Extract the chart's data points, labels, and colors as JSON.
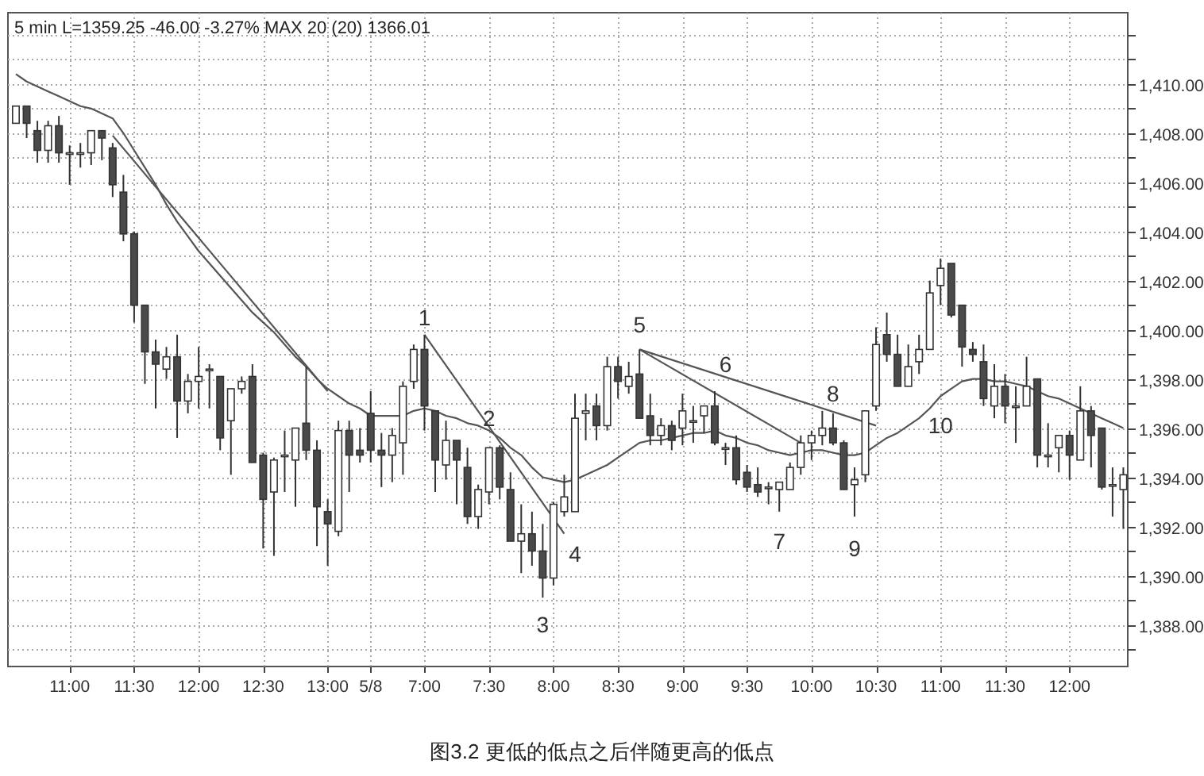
{
  "chart_data": {
    "type": "candlestick",
    "title": "图3.2 更低的低点之后伴随更高的低点",
    "subtitle": "5 min  L=1359.25  -46.00  -3.27%  MAX 20 (20) 1366.01",
    "categories": [
      null,
      null,
      null,
      null,
      null,
      "11:00",
      null,
      null,
      null,
      null,
      null,
      "11:30",
      null,
      null,
      null,
      null,
      null,
      "12:00",
      null,
      null,
      null,
      null,
      null,
      "12:30",
      null,
      null,
      null,
      null,
      null,
      "13:00",
      null,
      null,
      null,
      "5/8",
      null,
      null,
      null,
      null,
      "7:00",
      null,
      null,
      null,
      null,
      null,
      "7:30",
      null,
      null,
      null,
      null,
      null,
      "8:00",
      null,
      null,
      null,
      null,
      null,
      "8:30",
      null,
      null,
      null,
      null,
      null,
      "9:00",
      null,
      null,
      null,
      null,
      null,
      "9:30",
      null,
      null,
      null,
      null,
      null,
      "10:00",
      null,
      null,
      null,
      null,
      null,
      "10:30",
      null,
      null,
      null,
      null,
      null,
      "11:00",
      null,
      null,
      null,
      null,
      null,
      "11:30",
      null,
      null,
      null,
      null,
      null,
      "12:00",
      null,
      null,
      null,
      null,
      null
    ],
    "ohlc": [
      [
        1408.4,
        1409.1,
        1408.4,
        1409.1
      ],
      [
        1409.1,
        1409.1,
        1407.8,
        1408.4
      ],
      [
        1408.1,
        1408.5,
        1406.8,
        1407.3
      ],
      [
        1407.3,
        1408.5,
        1406.8,
        1408.3
      ],
      [
        1408.3,
        1408.7,
        1406.8,
        1407.2
      ],
      [
        1407.2,
        1407.5,
        1405.9,
        1407.2
      ],
      [
        1407.2,
        1407.6,
        1406.6,
        1407.2
      ],
      [
        1407.2,
        1408.1,
        1406.7,
        1408.1
      ],
      [
        1408.1,
        1408.1,
        1406.9,
        1407.8
      ],
      [
        1407.4,
        1407.6,
        1405.4,
        1405.9
      ],
      [
        1405.6,
        1406.3,
        1403.6,
        1403.9
      ],
      [
        1403.9,
        1404.0,
        1400.3,
        1401.0
      ],
      [
        1401.0,
        1401.0,
        1397.8,
        1399.1
      ],
      [
        1399.1,
        1399.6,
        1396.8,
        1398.6
      ],
      [
        1398.4,
        1399.3,
        1398.0,
        1398.9
      ],
      [
        1398.9,
        1399.8,
        1395.6,
        1397.1
      ],
      [
        1397.1,
        1398.2,
        1396.6,
        1397.9
      ],
      [
        1397.9,
        1399.3,
        1396.8,
        1398.1
      ],
      [
        1398.4,
        1398.6,
        1396.8,
        1398.4
      ],
      [
        1398.1,
        1398.1,
        1395.1,
        1395.6
      ],
      [
        1396.3,
        1397.6,
        1394.1,
        1397.6
      ],
      [
        1397.6,
        1398.1,
        1397.4,
        1397.9
      ],
      [
        1398.1,
        1398.6,
        1394.6,
        1394.6
      ],
      [
        1394.9,
        1395.0,
        1391.1,
        1393.1
      ],
      [
        1393.4,
        1394.8,
        1390.8,
        1394.7
      ],
      [
        1394.9,
        1395.9,
        1393.4,
        1394.9
      ],
      [
        1394.7,
        1396.0,
        1392.8,
        1396.0
      ],
      [
        1396.2,
        1398.5,
        1394.7,
        1395.1
      ],
      [
        1395.1,
        1395.5,
        1391.2,
        1392.8
      ],
      [
        1392.6,
        1393.1,
        1390.4,
        1392.1
      ],
      [
        1391.8,
        1396.3,
        1391.6,
        1395.9
      ],
      [
        1395.9,
        1396.3,
        1393.4,
        1394.9
      ],
      [
        1395.1,
        1396.0,
        1394.6,
        1394.9
      ],
      [
        1396.6,
        1397.5,
        1394.6,
        1395.1
      ],
      [
        1395.1,
        1395.8,
        1393.6,
        1394.9
      ],
      [
        1394.9,
        1396.0,
        1393.8,
        1395.7
      ],
      [
        1395.4,
        1397.9,
        1394.1,
        1397.7
      ],
      [
        1397.9,
        1399.4,
        1397.6,
        1399.2
      ],
      [
        1399.2,
        1399.8,
        1395.9,
        1396.9
      ],
      [
        1396.7,
        1396.7,
        1393.4,
        1394.7
      ],
      [
        1394.5,
        1396.3,
        1393.9,
        1395.5
      ],
      [
        1395.5,
        1395.5,
        1392.9,
        1394.7
      ],
      [
        1394.4,
        1395.2,
        1392.1,
        1392.4
      ],
      [
        1392.4,
        1393.7,
        1391.9,
        1393.5
      ],
      [
        1393.4,
        1395.2,
        1392.9,
        1395.2
      ],
      [
        1395.2,
        1395.3,
        1393.1,
        1393.6
      ],
      [
        1393.5,
        1394.2,
        1391.4,
        1391.4
      ],
      [
        1391.4,
        1392.9,
        1390.1,
        1391.7
      ],
      [
        1391.7,
        1392.6,
        1390.4,
        1391.0
      ],
      [
        1391.0,
        1392.1,
        1389.1,
        1389.9
      ],
      [
        1389.9,
        1393.0,
        1389.6,
        1392.9
      ],
      [
        1392.6,
        1394.1,
        1392.4,
        1393.2
      ],
      [
        1392.6,
        1397.4,
        1392.6,
        1396.4
      ],
      [
        1396.6,
        1397.4,
        1395.5,
        1396.7
      ],
      [
        1396.9,
        1397.4,
        1395.5,
        1396.1
      ],
      [
        1396.1,
        1398.9,
        1395.9,
        1398.5
      ],
      [
        1398.5,
        1398.9,
        1397.2,
        1397.9
      ],
      [
        1397.7,
        1398.7,
        1397.4,
        1398.1
      ],
      [
        1398.2,
        1399.2,
        1396.4,
        1396.4
      ],
      [
        1396.5,
        1397.4,
        1395.3,
        1395.7
      ],
      [
        1395.7,
        1396.4,
        1395.3,
        1396.1
      ],
      [
        1396.1,
        1396.3,
        1395.1,
        1395.5
      ],
      [
        1396.0,
        1397.4,
        1395.3,
        1396.7
      ],
      [
        1396.3,
        1396.9,
        1395.4,
        1396.3
      ],
      [
        1396.5,
        1396.9,
        1395.8,
        1396.9
      ],
      [
        1396.9,
        1397.5,
        1395.3,
        1395.4
      ],
      [
        1395.2,
        1395.4,
        1394.5,
        1395.2
      ],
      [
        1395.2,
        1395.7,
        1393.7,
        1393.9
      ],
      [
        1394.2,
        1394.5,
        1393.4,
        1393.6
      ],
      [
        1393.7,
        1394.4,
        1393.2,
        1393.4
      ],
      [
        1393.6,
        1393.8,
        1392.9,
        1393.6
      ],
      [
        1393.5,
        1393.8,
        1392.6,
        1393.8
      ],
      [
        1393.5,
        1394.6,
        1393.5,
        1394.4
      ],
      [
        1394.4,
        1395.7,
        1394.1,
        1395.4
      ],
      [
        1395.4,
        1395.9,
        1394.7,
        1395.7
      ],
      [
        1395.7,
        1396.7,
        1395.3,
        1396.0
      ],
      [
        1396.0,
        1396.6,
        1395.3,
        1395.4
      ],
      [
        1395.4,
        1395.5,
        1393.5,
        1393.5
      ],
      [
        1393.7,
        1394.4,
        1392.4,
        1393.9
      ],
      [
        1394.1,
        1396.7,
        1393.8,
        1396.7
      ],
      [
        1396.9,
        1400.1,
        1396.7,
        1399.4
      ],
      [
        1399.8,
        1400.7,
        1398.7,
        1399.0
      ],
      [
        1399.0,
        1399.8,
        1397.7,
        1397.7
      ],
      [
        1397.7,
        1399.4,
        1397.7,
        1398.5
      ],
      [
        1398.7,
        1399.8,
        1398.2,
        1399.2
      ],
      [
        1399.2,
        1402.0,
        1399.2,
        1401.5
      ],
      [
        1401.8,
        1402.9,
        1401.0,
        1402.5
      ],
      [
        1402.7,
        1402.7,
        1400.5,
        1400.6
      ],
      [
        1401.0,
        1401.0,
        1398.5,
        1399.3
      ],
      [
        1399.2,
        1399.5,
        1398.7,
        1399.0
      ],
      [
        1398.7,
        1399.4,
        1396.9,
        1397.2
      ],
      [
        1396.9,
        1398.6,
        1396.4,
        1397.7
      ],
      [
        1397.7,
        1398.2,
        1396.2,
        1396.9
      ],
      [
        1396.9,
        1397.7,
        1395.4,
        1396.9
      ],
      [
        1396.9,
        1398.9,
        1396.9,
        1397.7
      ],
      [
        1398.0,
        1398.0,
        1394.4,
        1394.9
      ],
      [
        1394.9,
        1396.2,
        1394.4,
        1394.9
      ],
      [
        1395.2,
        1395.7,
        1394.2,
        1395.7
      ],
      [
        1395.7,
        1395.9,
        1393.9,
        1394.9
      ],
      [
        1394.7,
        1397.7,
        1394.7,
        1396.7
      ],
      [
        1396.7,
        1396.9,
        1394.4,
        1395.7
      ],
      [
        1396.0,
        1396.0,
        1393.5,
        1393.6
      ],
      [
        1393.7,
        1394.4,
        1392.4,
        1393.7
      ],
      [
        1393.5,
        1394.4,
        1391.9,
        1394.1
      ]
    ],
    "colors": [
      "#ffffff",
      "#4a4a4a",
      "#4a4a4a",
      "#ffffff",
      "#4a4a4a",
      "#ffffff",
      "#ffffff",
      "#ffffff",
      "#4a4a4a",
      "#4a4a4a",
      "#4a4a4a",
      "#4a4a4a",
      "#4a4a4a",
      "#4a4a4a",
      "#ffffff",
      "#4a4a4a",
      "#ffffff",
      "#ffffff",
      "#ffffff",
      "#4a4a4a",
      "#ffffff",
      "#ffffff",
      "#4a4a4a",
      "#4a4a4a",
      "#ffffff",
      "#ffffff",
      "#ffffff",
      "#4a4a4a",
      "#4a4a4a",
      "#4a4a4a",
      "#ffffff",
      "#4a4a4a",
      "#4a4a4a",
      "#4a4a4a",
      "#4a4a4a",
      "#ffffff",
      "#ffffff",
      "#ffffff",
      "#4a4a4a",
      "#4a4a4a",
      "#ffffff",
      "#4a4a4a",
      "#4a4a4a",
      "#ffffff",
      "#ffffff",
      "#4a4a4a",
      "#4a4a4a",
      "#ffffff",
      "#4a4a4a",
      "#4a4a4a",
      "#ffffff",
      "#ffffff",
      "#ffffff",
      "#ffffff",
      "#4a4a4a",
      "#ffffff",
      "#4a4a4a",
      "#ffffff",
      "#4a4a4a",
      "#4a4a4a",
      "#ffffff",
      "#4a4a4a",
      "#ffffff",
      "#ffffff",
      "#ffffff",
      "#4a4a4a",
      "#ffffff",
      "#4a4a4a",
      "#4a4a4a",
      "#4a4a4a",
      "#ffffff",
      "#ffffff",
      "#ffffff",
      "#ffffff",
      "#ffffff",
      "#ffffff",
      "#4a4a4a",
      "#4a4a4a",
      "#ffffff",
      "#ffffff",
      "#ffffff",
      "#4a4a4a",
      "#4a4a4a",
      "#ffffff",
      "#ffffff",
      "#ffffff",
      "#ffffff",
      "#4a4a4a",
      "#4a4a4a",
      "#4a4a4a",
      "#4a4a4a",
      "#ffffff",
      "#4a4a4a",
      "#ffffff",
      "#ffffff",
      "#4a4a4a",
      "#ffffff",
      "#ffffff",
      "#4a4a4a",
      "#ffffff",
      "#4a4a4a",
      "#4a4a4a",
      "#ffffff",
      "#ffffff"
    ],
    "series": [
      {
        "type": "line",
        "color": "#555555",
        "values": [
          1410.4,
          1410.1,
          1409.9,
          1409.7,
          1409.5,
          1409.3,
          1409.1,
          1409.0,
          1408.8,
          1408.6,
          1408.0,
          1407.3,
          1406.6,
          1405.9,
          1405.1,
          1404.4,
          1403.8,
          1403.2,
          1402.7,
          1402.2,
          1401.7,
          1401.2,
          1400.7,
          1400.3,
          1399.9,
          1399.4,
          1398.9,
          1398.5,
          1398.0,
          1397.6,
          1397.3,
          1397.0,
          1396.8,
          1396.5,
          1396.5,
          1396.5,
          1396.5,
          1396.7,
          1396.8,
          1396.7,
          1396.5,
          1396.4,
          1396.2,
          1396.1,
          1395.9,
          1395.6,
          1395.2,
          1394.9,
          1394.4,
          1394.0,
          1393.9,
          1393.8,
          1393.9,
          1394.1,
          1394.3,
          1394.5,
          1394.8,
          1395.1,
          1395.4,
          1395.5,
          1395.5,
          1395.6,
          1395.7,
          1395.8,
          1395.8,
          1395.9,
          1395.7,
          1395.6,
          1395.4,
          1395.3,
          1395.1,
          1395.0,
          1394.9,
          1395.0,
          1395.1,
          1395.1,
          1395.0,
          1394.9,
          1394.9,
          1395.0,
          1395.3,
          1395.6,
          1395.8,
          1396.1,
          1396.4,
          1396.8,
          1397.3,
          1397.6,
          1397.9,
          1398.0,
          1398.0,
          1397.9,
          1397.9,
          1397.8,
          1397.7,
          1397.5,
          1397.3,
          1397.2,
          1397.0,
          1396.8,
          1396.6,
          1396.4,
          1396.2,
          1396.0
        ]
      },
      {
        "type": "line",
        "color": "#555555",
        "values": [
          null,
          null,
          null,
          null,
          null,
          null,
          null,
          null,
          null,
          1407.9,
          null,
          null,
          null,
          null,
          null,
          null,
          null,
          null,
          null,
          null,
          null,
          null,
          null,
          null,
          null,
          null,
          null,
          null,
          null,
          1397.5,
          null,
          null,
          null,
          null,
          null,
          null,
          null,
          null,
          null,
          null,
          null,
          null,
          null,
          null,
          null,
          null,
          null,
          null,
          null,
          null,
          null,
          null,
          null,
          null,
          null,
          null,
          null,
          null,
          null,
          null,
          null,
          null,
          null,
          null,
          null,
          null,
          null,
          null,
          null,
          null,
          null,
          null,
          null,
          null,
          null,
          null,
          null,
          null,
          null,
          null,
          null,
          null,
          null,
          null,
          null,
          null,
          null,
          null,
          null,
          null,
          null,
          null,
          null,
          null,
          null,
          null,
          null,
          null,
          null,
          null,
          null,
          null,
          null,
          null
        ]
      },
      {
        "type": "line",
        "color": "#555555",
        "values": [
          null,
          null,
          null,
          null,
          null,
          null,
          null,
          null,
          null,
          null,
          null,
          null,
          null,
          null,
          null,
          null,
          null,
          null,
          null,
          null,
          null,
          null,
          null,
          null,
          null,
          null,
          null,
          null,
          null,
          null,
          null,
          null,
          null,
          null,
          null,
          null,
          null,
          null,
          1399.8,
          null,
          null,
          null,
          null,
          null,
          null,
          null,
          null,
          null,
          null,
          null,
          null,
          1391.7,
          null,
          null,
          null,
          null,
          null,
          null,
          null,
          null,
          null,
          null,
          null,
          null,
          null,
          null,
          null,
          null,
          null,
          null,
          null,
          null,
          null,
          null,
          null,
          null,
          null,
          null,
          null,
          null,
          null,
          null,
          null,
          null,
          null,
          null,
          null,
          null,
          null,
          null,
          null,
          null,
          null,
          null,
          null,
          null,
          null,
          null,
          null,
          null,
          null,
          null,
          null,
          null
        ]
      },
      {
        "type": "line",
        "color": "#555555",
        "values": [
          null,
          null,
          null,
          null,
          null,
          null,
          null,
          null,
          null,
          null,
          null,
          null,
          null,
          null,
          null,
          null,
          null,
          null,
          null,
          null,
          null,
          null,
          null,
          null,
          null,
          null,
          null,
          null,
          null,
          null,
          null,
          null,
          null,
          null,
          null,
          null,
          null,
          null,
          null,
          null,
          null,
          null,
          null,
          null,
          null,
          null,
          null,
          null,
          null,
          null,
          null,
          null,
          null,
          null,
          null,
          null,
          null,
          null,
          1399.2,
          null,
          null,
          null,
          null,
          null,
          null,
          null,
          null,
          null,
          null,
          null,
          null,
          null,
          null,
          1395.4,
          null,
          null,
          null,
          null,
          null,
          null,
          null,
          null,
          null,
          null,
          null,
          null,
          null,
          null,
          null,
          null,
          null,
          null,
          null,
          null,
          null,
          null,
          null,
          null,
          null,
          null,
          null,
          null,
          null,
          null
        ]
      },
      {
        "type": "line",
        "color": "#555555",
        "values": [
          null,
          null,
          null,
          null,
          null,
          null,
          null,
          null,
          null,
          null,
          null,
          null,
          null,
          null,
          null,
          null,
          null,
          null,
          null,
          null,
          null,
          null,
          null,
          null,
          null,
          null,
          null,
          null,
          null,
          null,
          null,
          null,
          null,
          null,
          null,
          null,
          null,
          null,
          null,
          null,
          null,
          null,
          null,
          null,
          null,
          null,
          null,
          null,
          null,
          null,
          null,
          null,
          null,
          null,
          null,
          null,
          null,
          null,
          1399.2,
          null,
          null,
          null,
          null,
          null,
          null,
          null,
          null,
          null,
          null,
          null,
          null,
          null,
          null,
          null,
          null,
          null,
          null,
          null,
          null,
          null,
          1396.1,
          null,
          null,
          null,
          null,
          null,
          null,
          null,
          null,
          null,
          null,
          null,
          null,
          null,
          null,
          null,
          null,
          null,
          null,
          null,
          null,
          null,
          null,
          null
        ]
      }
    ],
    "ylim": [
      1386.3,
      1412.9
    ],
    "yticks": [
      {
        "value": 1387,
        "label": null
      },
      {
        "value": 1388,
        "label": "1,388.00"
      },
      {
        "value": 1389,
        "label": null
      },
      {
        "value": 1390,
        "label": "1,390.00"
      },
      {
        "value": 1391,
        "label": null
      },
      {
        "value": 1392,
        "label": "1,392.00"
      },
      {
        "value": 1393,
        "label": null
      },
      {
        "value": 1394,
        "label": "1,394.00"
      },
      {
        "value": 1395,
        "label": null
      },
      {
        "value": 1396,
        "label": "1,396.00"
      },
      {
        "value": 1397,
        "label": null
      },
      {
        "value": 1398,
        "label": "1,398.00"
      },
      {
        "value": 1399,
        "label": null
      },
      {
        "value": 1400,
        "label": "1,400.00"
      },
      {
        "value": 1401,
        "label": null
      },
      {
        "value": 1402,
        "label": "1,402.00"
      },
      {
        "value": 1403,
        "label": null
      },
      {
        "value": 1404,
        "label": "1,404.00"
      },
      {
        "value": 1405,
        "label": null
      },
      {
        "value": 1406,
        "label": "1,406.00"
      },
      {
        "value": 1407,
        "label": null
      },
      {
        "value": 1408,
        "label": "1,408.00"
      },
      {
        "value": 1409,
        "label": null
      },
      {
        "value": 1410,
        "label": "1,410.00"
      },
      {
        "value": 1411,
        "label": null
      },
      {
        "value": 1412,
        "label": null
      }
    ],
    "grid": true,
    "annotations": [
      "1",
      "2",
      "3",
      "4",
      "5",
      "6",
      "7",
      "8",
      "9",
      "10"
    ]
  }
}
